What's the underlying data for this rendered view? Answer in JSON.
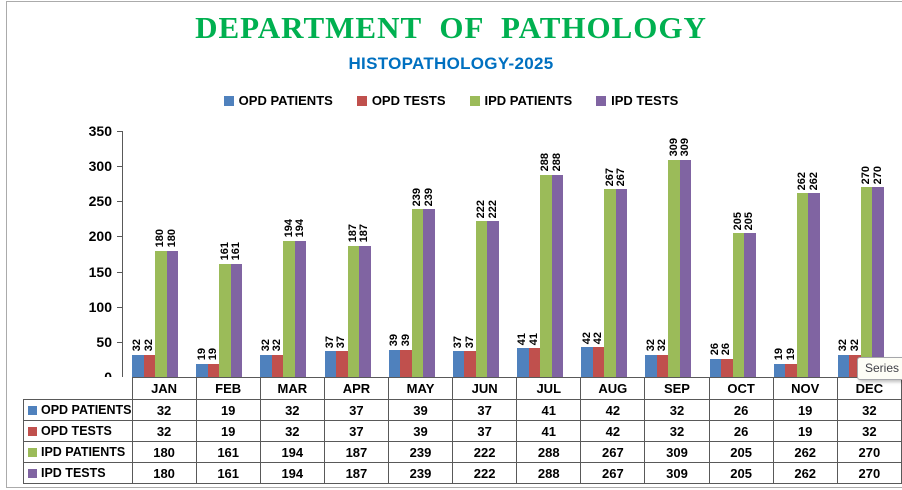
{
  "chart_data": {
    "type": "bar",
    "title": "DEPARTMENT OF PATHOLOGY",
    "title_color": "#00B050",
    "subtitle": "HISTOPATHOLOGY-2025",
    "subtitle_color": "#0070C0",
    "categories": [
      "JAN",
      "FEB",
      "MAR",
      "APR",
      "MAY",
      "JUN",
      "JUL",
      "AUG",
      "SEP",
      "OCT",
      "NOV",
      "DEC"
    ],
    "series": [
      {
        "name": "OPD PATIENTS",
        "color": "#4F81BD",
        "values": [
          32,
          19,
          32,
          37,
          39,
          37,
          41,
          42,
          32,
          26,
          19,
          32
        ]
      },
      {
        "name": "OPD TESTS",
        "color": "#C0504D",
        "values": [
          32,
          19,
          32,
          37,
          39,
          37,
          41,
          42,
          32,
          26,
          19,
          32
        ]
      },
      {
        "name": "IPD PATIENTS",
        "color": "#9BBB59",
        "values": [
          180,
          161,
          194,
          187,
          239,
          222,
          288,
          267,
          309,
          205,
          262,
          270
        ]
      },
      {
        "name": "IPD TESTS",
        "color": "#8064A2",
        "values": [
          180,
          161,
          194,
          187,
          239,
          222,
          288,
          267,
          309,
          205,
          262,
          270
        ]
      }
    ],
    "xlabel": "",
    "ylabel": "",
    "ylim": [
      0,
      350
    ],
    "yticks": [
      0,
      50,
      100,
      150,
      200,
      250,
      300,
      350
    ],
    "grid": false,
    "legend_position": "top",
    "data_labels": "rotated-90-above-bars",
    "data_table_shown": true
  },
  "tooltip": {
    "text": "Series \""
  }
}
